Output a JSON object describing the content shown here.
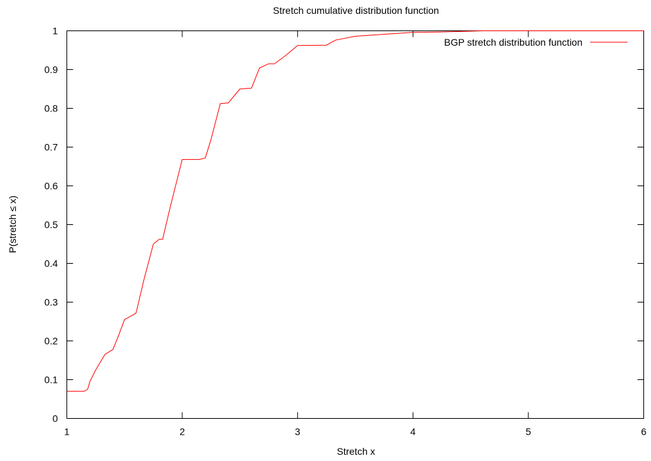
{
  "chart_data": {
    "type": "line",
    "title": "Stretch cumulative distribution function",
    "xlabel": "Stretch x",
    "ylabel": "P(stretch ≤ x)",
    "xlim": [
      1,
      6
    ],
    "ylim": [
      0,
      1
    ],
    "xticks": [
      "1",
      "2",
      "3",
      "4",
      "5",
      "6"
    ],
    "yticks": [
      "0",
      "0.1",
      "0.2",
      "0.3",
      "0.4",
      "0.5",
      "0.6",
      "0.7",
      "0.8",
      "0.9",
      "1"
    ],
    "grid": false,
    "legend_position": "top-right",
    "series": [
      {
        "name": "BGP stretch distribution function",
        "color": "#ff0000",
        "x": [
          1.0,
          1.15,
          1.18,
          1.2,
          1.25,
          1.33,
          1.4,
          1.45,
          1.5,
          1.58,
          1.6,
          1.67,
          1.75,
          1.8,
          1.83,
          1.9,
          2.0,
          2.15,
          2.2,
          2.25,
          2.33,
          2.4,
          2.5,
          2.6,
          2.67,
          2.75,
          2.8,
          2.9,
          3.0,
          3.25,
          3.33,
          3.5,
          3.75,
          4.0,
          4.25,
          4.5,
          4.6,
          5.0,
          6.0
        ],
        "y": [
          0.07,
          0.07,
          0.075,
          0.095,
          0.125,
          0.165,
          0.178,
          0.215,
          0.255,
          0.268,
          0.272,
          0.36,
          0.45,
          0.462,
          0.462,
          0.55,
          0.668,
          0.668,
          0.672,
          0.72,
          0.812,
          0.814,
          0.85,
          0.852,
          0.904,
          0.915,
          0.915,
          0.937,
          0.962,
          0.963,
          0.976,
          0.986,
          0.991,
          0.996,
          0.997,
          0.999,
          1.0,
          1.0,
          1.0
        ]
      }
    ]
  }
}
